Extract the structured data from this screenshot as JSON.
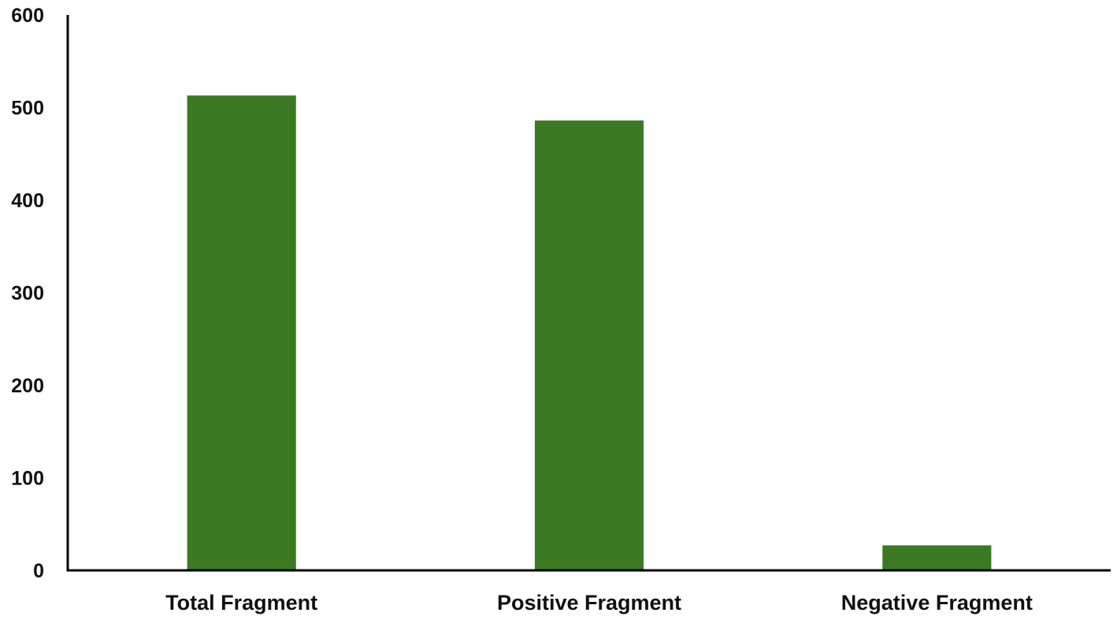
{
  "chart_data": {
    "type": "bar",
    "title": "",
    "xlabel": "",
    "ylabel": "",
    "categories": [
      "Total Fragment",
      "Positive Fragment",
      "Negative Fragment"
    ],
    "values": [
      513,
      486,
      27
    ],
    "ylim": [
      0,
      600
    ],
    "yticks": [
      0,
      100,
      200,
      300,
      400,
      500,
      600
    ],
    "grid": false,
    "legend": "none",
    "bar_color": "#3b7a23",
    "axis_color": "#000000"
  }
}
